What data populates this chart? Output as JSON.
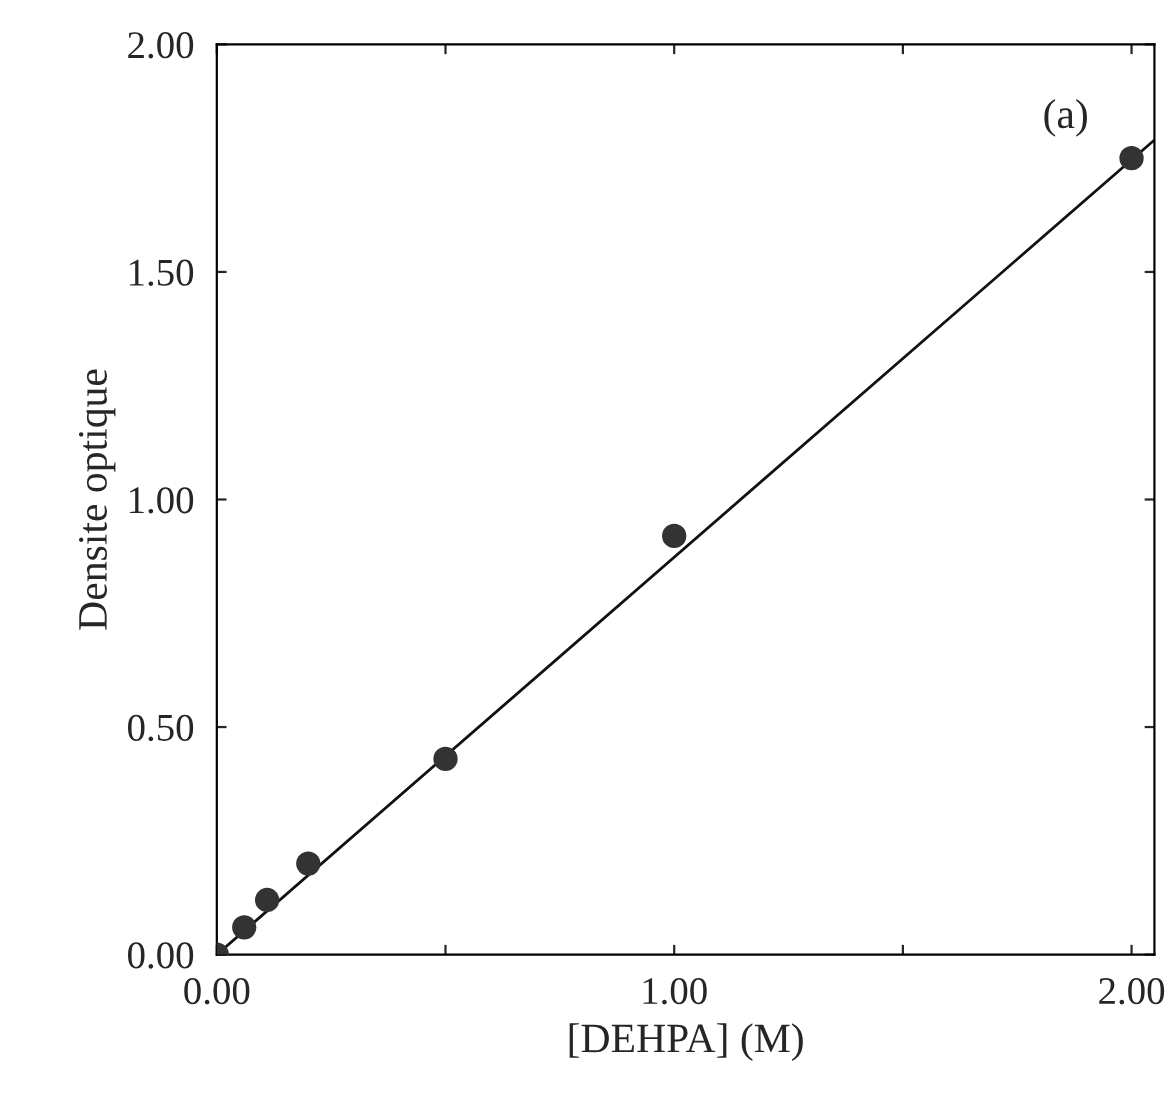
{
  "chart_data": {
    "type": "scatter",
    "xlabel": "[DEHPA] (M)",
    "ylabel": "Densite optique",
    "xlim": [
      0,
      2.05
    ],
    "ylim": [
      0,
      2.0
    ],
    "xticks": [
      {
        "value": 0,
        "label": "0.00"
      },
      {
        "value": 0.5,
        "label": null
      },
      {
        "value": 1.0,
        "label": "1.00"
      },
      {
        "value": 1.5,
        "label": null
      },
      {
        "value": 2.0,
        "label": "2.00"
      }
    ],
    "yticks": [
      {
        "value": 0,
        "label": "0.00"
      },
      {
        "value": 0.5,
        "label": "0.50"
      },
      {
        "value": 1.0,
        "label": "1.00"
      },
      {
        "value": 1.5,
        "label": "1.50"
      },
      {
        "value": 2.0,
        "label": "2.00"
      }
    ],
    "annotations": [
      "(a)"
    ],
    "grid": false,
    "series": [
      {
        "marker": "circle",
        "color": "#333333",
        "x": [
          0,
          0.06,
          0.11,
          0.2,
          0.5,
          1.0,
          2.0
        ],
        "values": [
          0,
          0.06,
          0.12,
          0.2,
          0.43,
          0.92,
          1.75
        ]
      },
      {
        "type": "line",
        "color": "#111111",
        "x": [
          0,
          2.05
        ],
        "values": [
          0,
          1.79
        ]
      }
    ]
  }
}
